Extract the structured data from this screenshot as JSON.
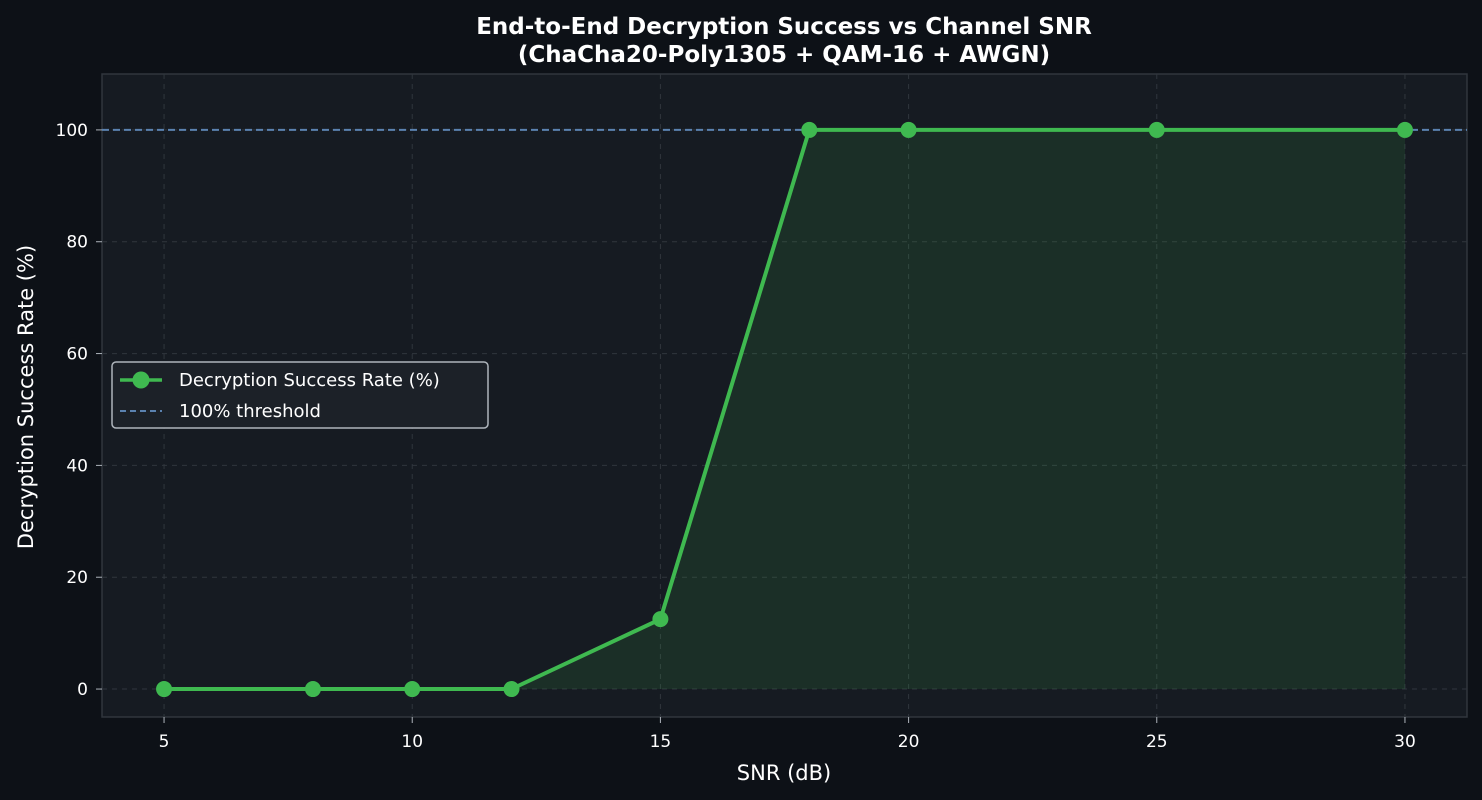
{
  "chart_data": {
    "type": "line",
    "title": "End-to-End Decryption Success vs Channel SNR",
    "subtitle": "(ChaCha20-Poly1305 + QAM-16 + AWGN)",
    "xlabel": "SNR (dB)",
    "ylabel": "Decryption Success Rate (%)",
    "x": [
      5,
      8,
      10,
      12,
      15,
      18,
      20,
      25,
      30
    ],
    "series": [
      {
        "name": "Decryption Success Rate (%)",
        "values": [
          0,
          0,
          0,
          0,
          12.5,
          100,
          100,
          100,
          100
        ],
        "color": "#3fb950",
        "fill": true
      }
    ],
    "reference_line": {
      "name": "100% threshold",
      "y": 100,
      "color": "#5b82b0",
      "style": "dashed"
    },
    "xlim": [
      3.75,
      31.25
    ],
    "ylim": [
      -5,
      110
    ],
    "xticks": [
      5,
      10,
      15,
      20,
      25,
      30
    ],
    "yticks": [
      0,
      20,
      40,
      60,
      80,
      100
    ],
    "grid": true,
    "legend_position": "center-left",
    "colors": {
      "background": "#0d1117",
      "plot_background": "#161b22",
      "axes": "#30363d",
      "grid": "#30363d",
      "text": "#ffffff"
    }
  }
}
